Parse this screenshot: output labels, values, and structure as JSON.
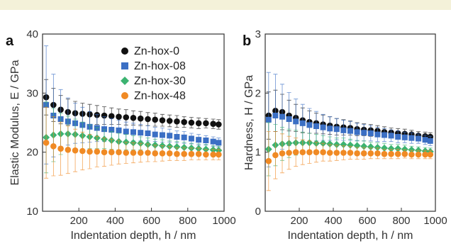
{
  "chart_data": [
    {
      "type": "scatter",
      "panel_label": "a",
      "title": "",
      "xlabel": "Indentation depth, h / nm",
      "ylabel": "Elastic Modulus, E / GPa",
      "xlim": [
        0,
        1000
      ],
      "ylim": [
        10,
        40
      ],
      "xticks": [
        200,
        400,
        600,
        800,
        1000
      ],
      "yticks": [
        10,
        20,
        30,
        40
      ],
      "legend_position": "top-right",
      "grid": false,
      "x": [
        20,
        60,
        100,
        140,
        180,
        220,
        260,
        300,
        340,
        380,
        420,
        460,
        500,
        540,
        580,
        620,
        660,
        700,
        740,
        780,
        820,
        860,
        900,
        940,
        970
      ],
      "series": [
        {
          "name": "Zn-hox-0",
          "color": "#111111",
          "marker": "circle",
          "values": [
            29.3,
            28.0,
            27.2,
            26.8,
            26.6,
            26.5,
            26.4,
            26.3,
            26.2,
            26.1,
            26.0,
            25.9,
            25.8,
            25.7,
            25.6,
            25.5,
            25.4,
            25.3,
            25.2,
            25.1,
            25.0,
            24.9,
            24.9,
            24.8,
            24.7
          ],
          "error": [
            3.0,
            2.8,
            2.4,
            2.2,
            2.0,
            1.8,
            1.7,
            1.6,
            1.5,
            1.4,
            1.3,
            1.3,
            1.2,
            1.2,
            1.1,
            1.1,
            1.0,
            1.0,
            1.0,
            0.9,
            0.9,
            0.9,
            0.8,
            0.8,
            0.8
          ]
        },
        {
          "name": "Zn-hox-08",
          "color": "#3b6fc4",
          "marker": "square",
          "values": [
            28.0,
            26.2,
            25.6,
            25.2,
            24.9,
            24.6,
            24.3,
            24.1,
            23.9,
            23.8,
            23.7,
            23.5,
            23.4,
            23.3,
            23.2,
            23.0,
            22.9,
            22.8,
            22.6,
            22.5,
            22.3,
            22.1,
            22.0,
            21.8,
            21.6
          ],
          "error": [
            10.0,
            7.0,
            5.0,
            4.0,
            3.4,
            3.0,
            2.6,
            2.3,
            2.1,
            1.9,
            1.7,
            1.6,
            1.5,
            1.4,
            1.3,
            1.2,
            1.2,
            1.1,
            1.0,
            1.0,
            0.9,
            0.9,
            0.8,
            0.8,
            0.8
          ]
        },
        {
          "name": "Zn-hox-30",
          "color": "#3cb371",
          "marker": "diamond",
          "values": [
            22.5,
            22.9,
            23.1,
            23.1,
            23.0,
            22.8,
            22.6,
            22.4,
            22.2,
            22.0,
            21.8,
            21.7,
            21.6,
            21.5,
            21.3,
            21.2,
            21.1,
            21.0,
            20.9,
            20.8,
            20.7,
            20.6,
            20.5,
            20.4,
            20.3
          ],
          "error": [
            6.0,
            4.5,
            3.5,
            3.0,
            2.6,
            2.3,
            2.0,
            1.8,
            1.6,
            1.5,
            1.4,
            1.3,
            1.2,
            1.1,
            1.1,
            1.0,
            1.0,
            0.9,
            0.9,
            0.9,
            0.8,
            0.8,
            0.8,
            0.7,
            0.7
          ]
        },
        {
          "name": "Zn-hox-48",
          "color": "#f08a24",
          "marker": "circle",
          "values": [
            21.6,
            21.0,
            20.6,
            20.4,
            20.3,
            20.2,
            20.1,
            20.1,
            20.0,
            20.0,
            20.0,
            19.9,
            19.9,
            19.9,
            19.9,
            19.8,
            19.8,
            19.8,
            19.7,
            19.7,
            19.7,
            19.7,
            19.6,
            19.6,
            19.6
          ],
          "error": [
            6.0,
            5.0,
            4.5,
            4.0,
            3.6,
            3.2,
            2.9,
            2.6,
            2.4,
            2.2,
            2.0,
            1.8,
            1.7,
            1.6,
            1.5,
            1.4,
            1.3,
            1.2,
            1.1,
            1.1,
            1.0,
            1.0,
            0.9,
            0.9,
            0.9
          ]
        }
      ]
    },
    {
      "type": "scatter",
      "panel_label": "b",
      "title": "",
      "xlabel": "Indentation depth, h / nm",
      "ylabel": "Hardness, H / GPa",
      "xlim": [
        0,
        1000
      ],
      "ylim": [
        0,
        3
      ],
      "xticks": [
        200,
        400,
        600,
        800,
        1000
      ],
      "yticks": [
        0,
        1,
        2,
        3
      ],
      "grid": false,
      "x": [
        20,
        60,
        100,
        140,
        180,
        220,
        260,
        300,
        340,
        380,
        420,
        460,
        500,
        540,
        580,
        620,
        660,
        700,
        740,
        780,
        820,
        860,
        900,
        940,
        970
      ],
      "series": [
        {
          "name": "Zn-hox-0",
          "color": "#111111",
          "marker": "circle",
          "values": [
            1.62,
            1.7,
            1.68,
            1.62,
            1.58,
            1.54,
            1.51,
            1.49,
            1.47,
            1.45,
            1.43,
            1.42,
            1.41,
            1.39,
            1.38,
            1.37,
            1.36,
            1.34,
            1.33,
            1.32,
            1.31,
            1.3,
            1.28,
            1.27,
            1.26
          ],
          "error": [
            0.4,
            0.35,
            0.3,
            0.26,
            0.23,
            0.21,
            0.19,
            0.17,
            0.16,
            0.15,
            0.14,
            0.13,
            0.12,
            0.11,
            0.1,
            0.1,
            0.09,
            0.09,
            0.08,
            0.08,
            0.08,
            0.07,
            0.07,
            0.07,
            0.07
          ]
        },
        {
          "name": "Zn-hox-08",
          "color": "#3b6fc4",
          "marker": "square",
          "values": [
            1.55,
            1.62,
            1.6,
            1.56,
            1.52,
            1.49,
            1.46,
            1.44,
            1.42,
            1.4,
            1.39,
            1.37,
            1.36,
            1.34,
            1.33,
            1.32,
            1.3,
            1.29,
            1.28,
            1.26,
            1.25,
            1.24,
            1.23,
            1.21,
            1.19
          ],
          "error": [
            0.8,
            0.7,
            0.55,
            0.45,
            0.38,
            0.32,
            0.28,
            0.25,
            0.22,
            0.2,
            0.18,
            0.17,
            0.16,
            0.15,
            0.14,
            0.13,
            0.12,
            0.11,
            0.1,
            0.1,
            0.09,
            0.09,
            0.08,
            0.08,
            0.08
          ]
        },
        {
          "name": "Zn-hox-30",
          "color": "#3cb371",
          "marker": "diamond",
          "values": [
            1.05,
            1.12,
            1.14,
            1.15,
            1.16,
            1.16,
            1.16,
            1.15,
            1.15,
            1.14,
            1.13,
            1.13,
            1.12,
            1.11,
            1.1,
            1.09,
            1.08,
            1.07,
            1.06,
            1.06,
            1.05,
            1.04,
            1.03,
            1.02,
            1.01
          ],
          "error": [
            0.45,
            0.35,
            0.28,
            0.24,
            0.21,
            0.18,
            0.16,
            0.15,
            0.13,
            0.12,
            0.11,
            0.11,
            0.1,
            0.09,
            0.09,
            0.08,
            0.08,
            0.08,
            0.07,
            0.07,
            0.07,
            0.06,
            0.06,
            0.06,
            0.06
          ]
        },
        {
          "name": "Zn-hox-48",
          "color": "#f08a24",
          "marker": "circle",
          "values": [
            0.85,
            0.95,
            0.98,
            0.99,
            1.0,
            1.0,
            1.0,
            1.0,
            1.0,
            0.99,
            0.99,
            0.99,
            0.99,
            0.98,
            0.98,
            0.98,
            0.98,
            0.97,
            0.97,
            0.97,
            0.97,
            0.96,
            0.96,
            0.96,
            0.96
          ],
          "error": [
            0.5,
            0.4,
            0.33,
            0.28,
            0.24,
            0.21,
            0.19,
            0.17,
            0.15,
            0.14,
            0.13,
            0.12,
            0.11,
            0.1,
            0.1,
            0.09,
            0.09,
            0.08,
            0.08,
            0.08,
            0.07,
            0.07,
            0.07,
            0.07,
            0.07
          ]
        }
      ]
    }
  ]
}
